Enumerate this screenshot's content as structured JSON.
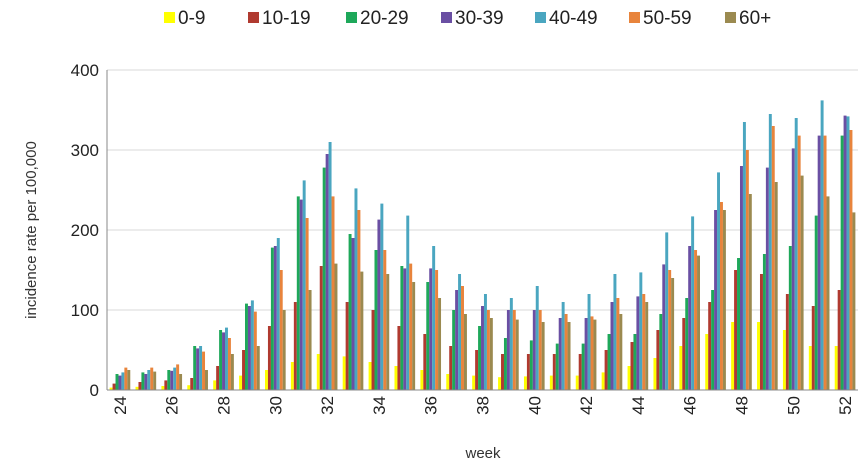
{
  "chart_data": {
    "type": "bar",
    "title": "",
    "xlabel": "week",
    "ylabel": "incidence rate per 100,000",
    "ylim": [
      0,
      400
    ],
    "yticks": [
      0,
      100,
      200,
      300,
      400
    ],
    "xticks": [
      "24",
      "26",
      "28",
      "30",
      "32",
      "34",
      "36",
      "38",
      "40",
      "42",
      "44",
      "46",
      "48",
      "50",
      "52"
    ],
    "legend_position": "top",
    "categories": [
      "24",
      "25",
      "26",
      "27",
      "28",
      "29",
      "30",
      "31",
      "32",
      "33",
      "34",
      "35",
      "36",
      "37",
      "38",
      "39",
      "40",
      "41",
      "42",
      "43",
      "44",
      "45",
      "46",
      "47",
      "48",
      "49",
      "50",
      "51",
      "52"
    ],
    "series": [
      {
        "name": "0-9",
        "color": "#ffff00",
        "values": [
          3,
          4,
          5,
          6,
          12,
          18,
          25,
          35,
          45,
          42,
          35,
          30,
          25,
          20,
          18,
          16,
          17,
          18,
          18,
          22,
          30,
          40,
          55,
          70,
          85,
          85,
          75,
          55,
          55
        ]
      },
      {
        "name": "10-19",
        "color": "#b03a30",
        "values": [
          8,
          10,
          12,
          15,
          30,
          50,
          80,
          110,
          155,
          110,
          100,
          80,
          70,
          55,
          50,
          45,
          45,
          45,
          45,
          50,
          60,
          75,
          90,
          110,
          150,
          145,
          120,
          105,
          125
        ]
      },
      {
        "name": "20-29",
        "color": "#1ea85a",
        "values": [
          20,
          22,
          25,
          55,
          75,
          108,
          178,
          242,
          278,
          195,
          175,
          155,
          135,
          100,
          80,
          65,
          62,
          58,
          58,
          70,
          70,
          95,
          115,
          125,
          165,
          170,
          180,
          218,
          318
        ]
      },
      {
        "name": "30-39",
        "color": "#6a4fa3",
        "values": [
          18,
          20,
          24,
          52,
          72,
          105,
          180,
          238,
          295,
          190,
          213,
          152,
          152,
          125,
          105,
          100,
          100,
          90,
          90,
          110,
          117,
          157,
          180,
          225,
          280,
          278,
          302,
          318,
          343
        ]
      },
      {
        "name": "40-49",
        "color": "#4aa6c0",
        "values": [
          22,
          25,
          28,
          55,
          78,
          112,
          190,
          262,
          310,
          252,
          233,
          218,
          180,
          145,
          120,
          115,
          130,
          110,
          120,
          145,
          147,
          197,
          217,
          272,
          335,
          345,
          340,
          362,
          342
        ]
      },
      {
        "name": "50-59",
        "color": "#e8843c",
        "values": [
          28,
          28,
          32,
          48,
          65,
          98,
          150,
          215,
          242,
          225,
          175,
          158,
          150,
          130,
          100,
          100,
          100,
          95,
          92,
          115,
          120,
          150,
          175,
          235,
          300,
          330,
          318,
          318,
          325
        ]
      },
      {
        "name": "60+",
        "color": "#9b8a50",
        "values": [
          25,
          23,
          20,
          25,
          45,
          55,
          100,
          125,
          158,
          148,
          145,
          135,
          115,
          95,
          90,
          88,
          85,
          85,
          88,
          95,
          110,
          140,
          168,
          225,
          245,
          260,
          268,
          242,
          222
        ]
      }
    ]
  }
}
